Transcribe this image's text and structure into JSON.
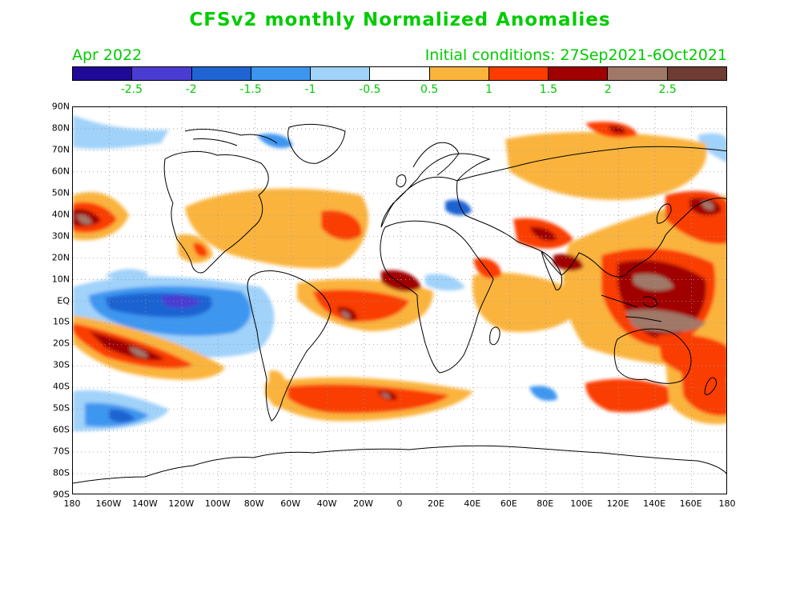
{
  "title": "CFSv2 monthly Normalized Anomalies",
  "forecast_month": "Apr 2022",
  "initial_conditions": "Initial conditions: 27Sep2021-6Oct2021",
  "colorbar": {
    "colors": [
      "#1e0a96",
      "#4a3cd2",
      "#1e64d2",
      "#3c96f0",
      "#a0d2fa",
      "#ffffff",
      "#fab43c",
      "#fa3c00",
      "#a00000",
      "#a07868",
      "#6e3c32"
    ],
    "labels": [
      "-2.5",
      "-2",
      "-1.5",
      "-1",
      "-0.5",
      "0.5",
      "1",
      "1.5",
      "2",
      "2.5"
    ]
  },
  "lat_labels": [
    "90N",
    "80N",
    "70N",
    "60N",
    "50N",
    "40N",
    "30N",
    "20N",
    "10N",
    "EQ",
    "10S",
    "20S",
    "30S",
    "40S",
    "50S",
    "60S",
    "70S",
    "80S",
    "90S"
  ],
  "lon_labels": [
    "180",
    "160W",
    "140W",
    "120W",
    "100W",
    "80W",
    "60W",
    "40W",
    "20W",
    "0",
    "20E",
    "40E",
    "60E",
    "80E",
    "100E",
    "120E",
    "140E",
    "160E",
    "180"
  ]
}
